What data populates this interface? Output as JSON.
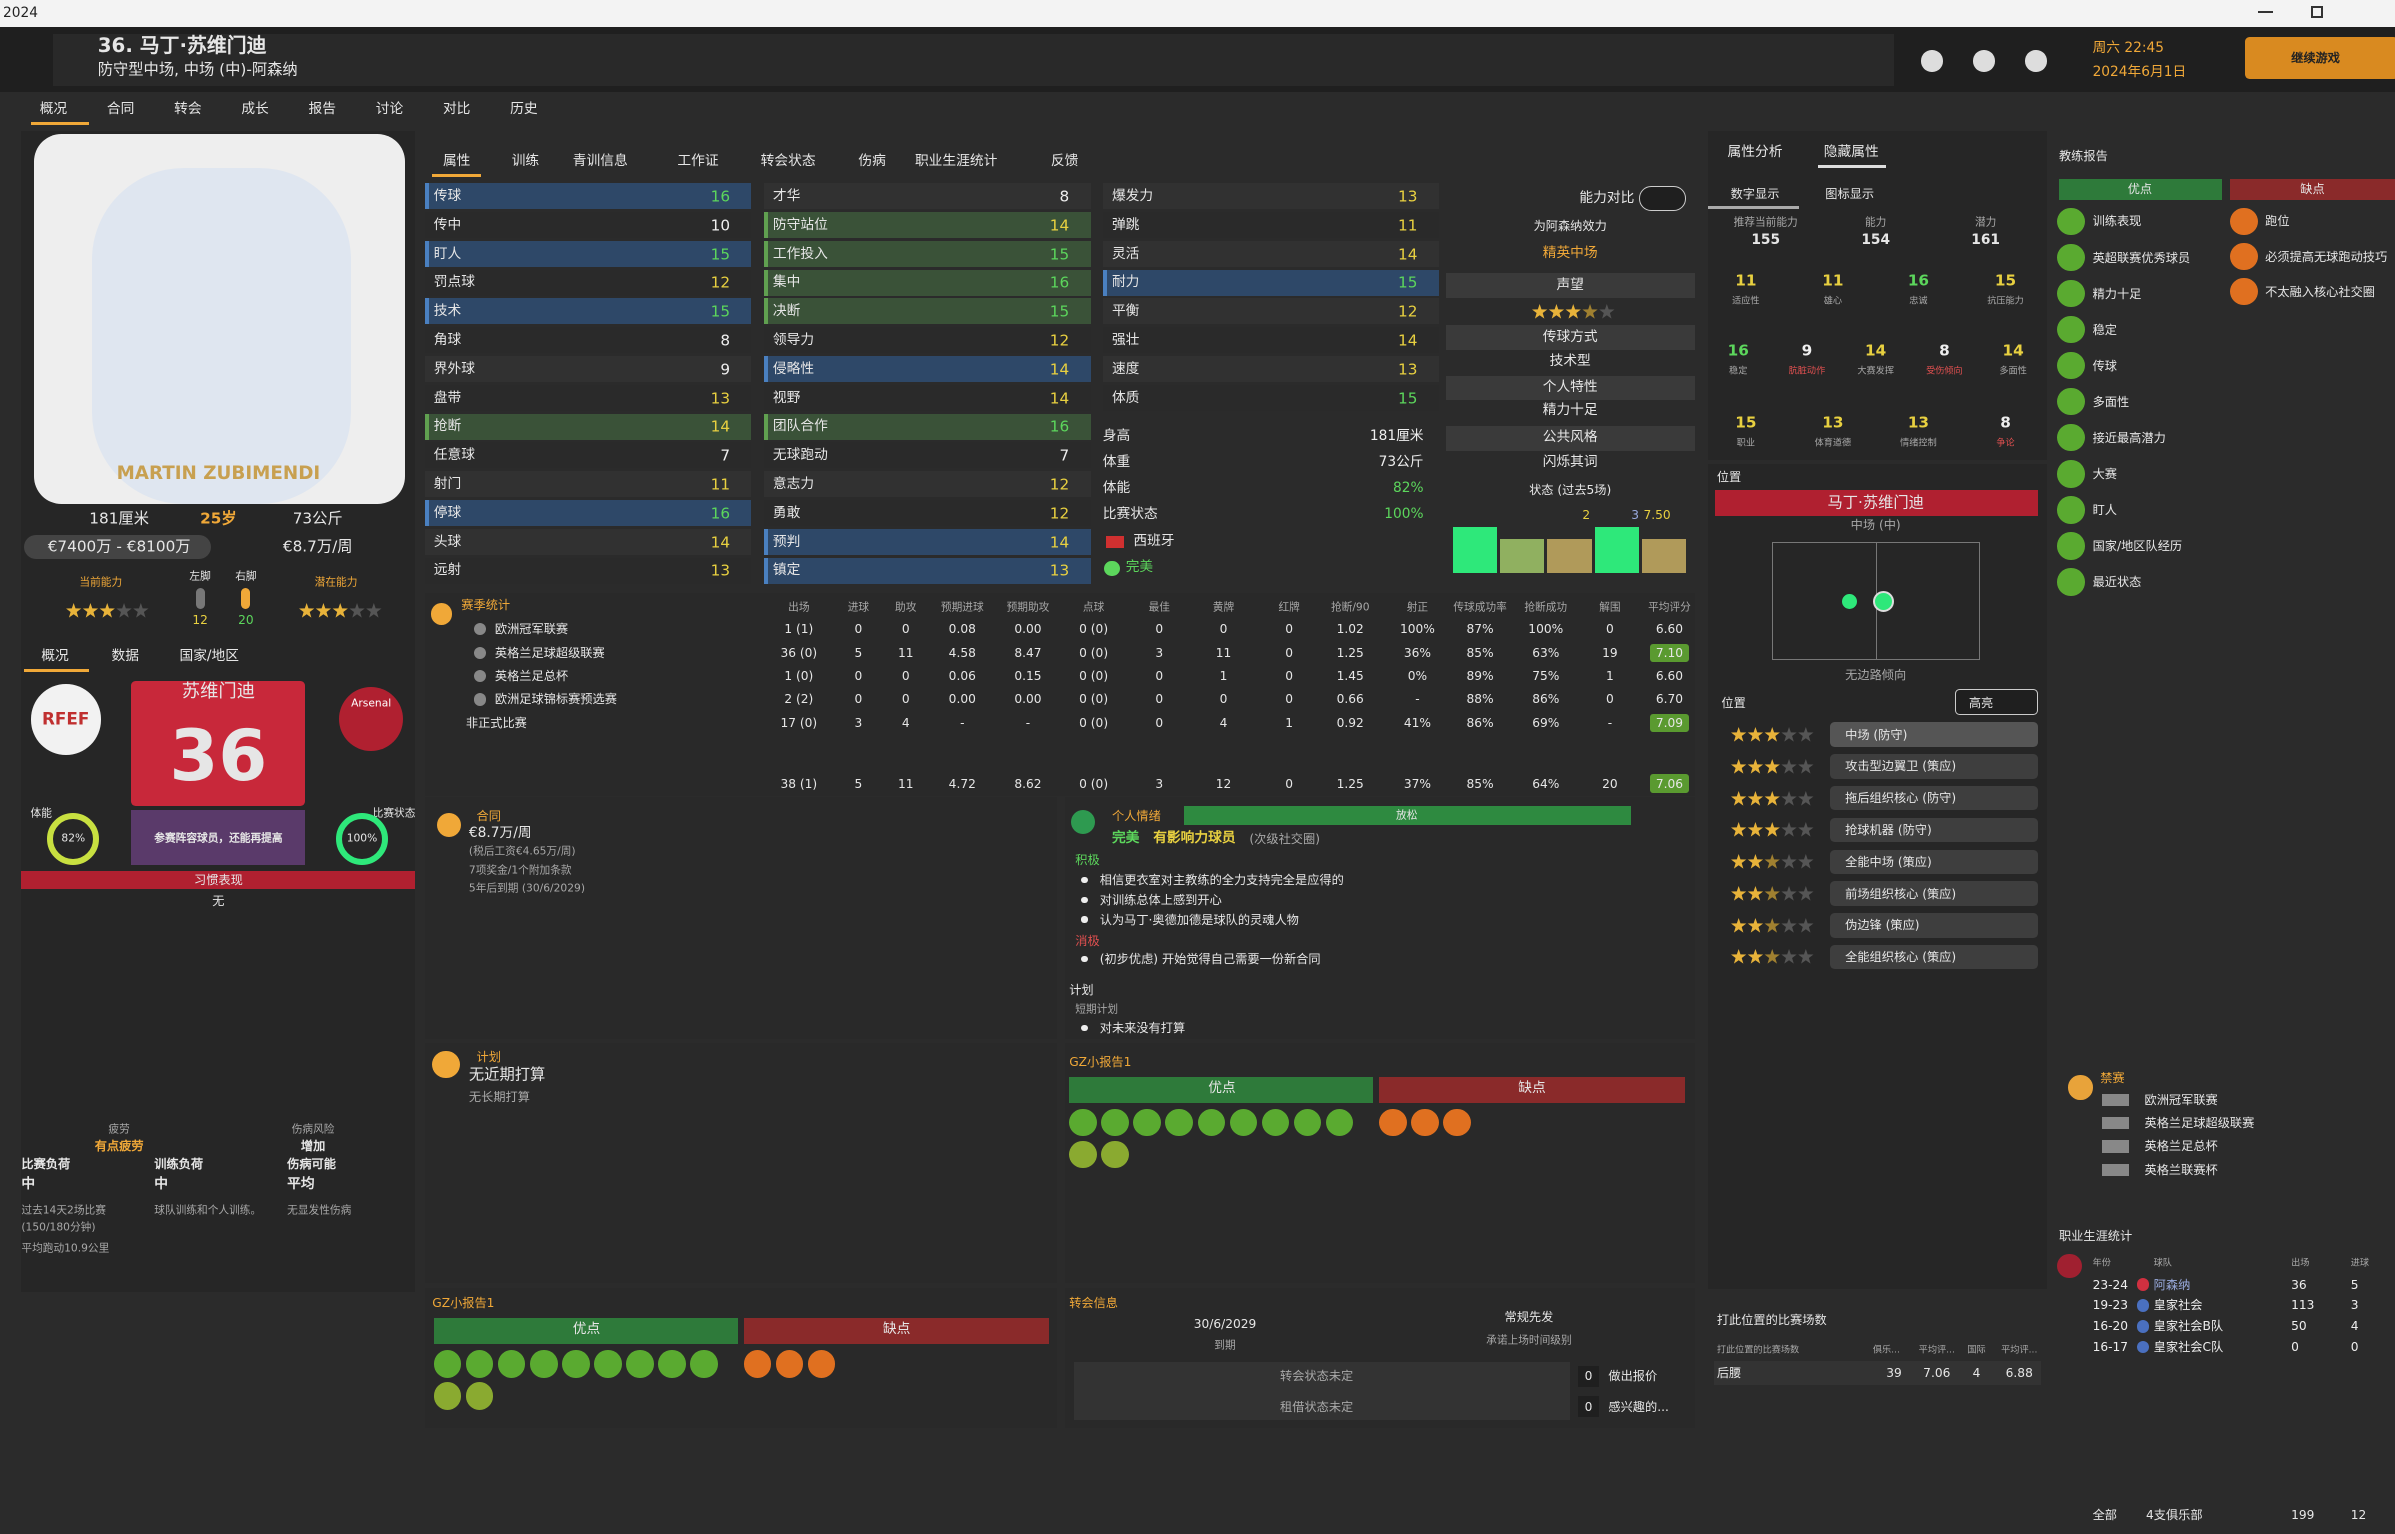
{
  "window": {
    "title": "2024"
  },
  "header": {
    "name": "36. 马丁·苏维门迪",
    "subtitle": "防守型中场, 中场 (中)-阿森纳",
    "time": "周六 22:45",
    "date": "2024年6月1日",
    "continue": "继续游戏"
  },
  "nav": [
    "概况",
    "合同",
    "转会",
    "成长",
    "报告",
    "讨论",
    "对比",
    "历史"
  ],
  "profile": {
    "photo_caption": "MARTIN ZUBIMENDI",
    "height": "181厘米",
    "age": "25岁",
    "weight": "73公斤",
    "value": "€7400万 - €8100万",
    "wage": "€8.7万/周",
    "current_ability_label": "当前能力",
    "left_foot_label": "左脚",
    "left_foot": 12,
    "right_foot_label": "右脚",
    "right_foot": 20,
    "potential_label": "潜在能力"
  },
  "sub_tabs": [
    "概况",
    "数据",
    "国家/地区"
  ],
  "card": {
    "national_badge": "RFEF",
    "club_badge": "Arsenal",
    "name": "苏维门迪",
    "number": 36,
    "note": "参赛阵容球员，还能再提高",
    "fitness_label": "体能",
    "fitness": "82%",
    "match_label": "比赛状态",
    "match": "100%",
    "habit_title": "习惯表现",
    "habit": "无"
  },
  "fatigue": {
    "fatigue_label": "疲劳",
    "fatigue": "有点疲劳",
    "risk_label": "伤病风险",
    "risk": "增加",
    "match_load_label": "比赛负荷",
    "match_load": "中",
    "training_load_label": "训练负荷",
    "training_load": "中",
    "injury_label": "伤病可能",
    "injury": "平均",
    "matches_note": "过去14天2场比赛",
    "minutes_note": "(150/180分钟)",
    "training_note": "球队训练和个人训练。",
    "injury_note": "无显发性伤病",
    "distance_note": "平均跑动10.9公里"
  },
  "tabs": [
    "属性",
    "训练",
    "青训信息",
    "工作证",
    "转会状态",
    "伤病",
    "职业生涯统计",
    "反馈"
  ],
  "attributes": {
    "technical": [
      [
        "传球",
        16
      ],
      [
        "传中",
        10
      ],
      [
        "盯人",
        15
      ],
      [
        "罚点球",
        12
      ],
      [
        "技术",
        15
      ],
      [
        "角球",
        8
      ],
      [
        "界外球",
        9
      ],
      [
        "盘带",
        13
      ],
      [
        "抢断",
        14
      ],
      [
        "任意球",
        7
      ],
      [
        "射门",
        11
      ],
      [
        "停球",
        16
      ],
      [
        "头球",
        14
      ],
      [
        "远射",
        13
      ]
    ],
    "mental": [
      [
        "才华",
        8
      ],
      [
        "防守站位",
        14
      ],
      [
        "工作投入",
        15
      ],
      [
        "集中",
        16
      ],
      [
        "决断",
        15
      ],
      [
        "领导力",
        12
      ],
      [
        "侵略性",
        14
      ],
      [
        "视野",
        14
      ],
      [
        "团队合作",
        16
      ],
      [
        "无球跑动",
        7
      ],
      [
        "意志力",
        12
      ],
      [
        "勇敢",
        12
      ],
      [
        "预判",
        14
      ],
      [
        "镇定",
        13
      ]
    ],
    "physical": [
      [
        "爆发力",
        13
      ],
      [
        "弹跳",
        11
      ],
      [
        "灵活",
        14
      ],
      [
        "耐力",
        15
      ],
      [
        "平衡",
        12
      ],
      [
        "强壮",
        14
      ],
      [
        "速度",
        13
      ],
      [
        "体质",
        15
      ]
    ]
  },
  "details": [
    [
      "身高",
      "181厘米"
    ],
    [
      "体重",
      "73公斤"
    ],
    [
      "体能",
      "82%"
    ],
    [
      "比赛状态",
      "100%"
    ]
  ],
  "nationality": "西班牙",
  "condition": "完美",
  "summary": {
    "compare": "能力对比",
    "playing_for": "为阿森纳效力",
    "role": "精英中场",
    "reputation": "声望",
    "pass_style_label": "传球方式",
    "pass_style": "技术型",
    "traits_label": "个人特性",
    "trait": "精力十足",
    "media_label": "公共风格",
    "media": "闪烁其词",
    "form_label": "状态 (过去5场)",
    "goals": 2,
    "assists": 3,
    "rating": "7.50"
  },
  "season_stats": {
    "title": "赛季统计",
    "columns": [
      "出场",
      "进球",
      "助攻",
      "预期进球",
      "预期助攻",
      "点球",
      "最佳",
      "黄牌",
      "红牌",
      "抢断/90",
      "射正",
      "传球成功率",
      "抢断成功",
      "解围",
      "平均评分"
    ],
    "rows": [
      {
        "competition": "欧洲冠军联赛",
        "cells": [
          "1 (1)",
          "0",
          "0",
          "0.08",
          "0.00",
          "0 (0)",
          "0",
          "0",
          "0",
          "1.02",
          "100%",
          "87%",
          "100%",
          "0",
          "6.60"
        ]
      },
      {
        "competition": "英格兰足球超级联赛",
        "cells": [
          "36 (0)",
          "5",
          "11",
          "4.58",
          "8.47",
          "0 (0)",
          "3",
          "11",
          "0",
          "1.25",
          "36%",
          "85%",
          "63%",
          "19",
          "7.10"
        ]
      },
      {
        "competition": "英格兰足总杯",
        "cells": [
          "1 (0)",
          "0",
          "0",
          "0.06",
          "0.15",
          "0 (0)",
          "0",
          "1",
          "0",
          "1.45",
          "0%",
          "89%",
          "75%",
          "1",
          "6.60"
        ]
      },
      {
        "competition": "欧洲足球锦标赛预选赛",
        "cells": [
          "2 (2)",
          "0",
          "0",
          "0.00",
          "0.00",
          "0 (0)",
          "0",
          "0",
          "0",
          "0.66",
          "-",
          "88%",
          "86%",
          "0",
          "6.70"
        ]
      },
      {
        "competition": "非正式比赛",
        "cells": [
          "17 (0)",
          "3",
          "4",
          "-",
          "-",
          "0 (0)",
          "0",
          "4",
          "1",
          "0.92",
          "41%",
          "86%",
          "69%",
          "-",
          "7.09"
        ]
      }
    ],
    "total": [
      "38 (1)",
      "5",
      "11",
      "4.72",
      "8.62",
      "0 (0)",
      "3",
      "12",
      "0",
      "1.25",
      "37%",
      "85%",
      "64%",
      "20",
      "7.06"
    ]
  },
  "contract": {
    "title": "合同",
    "wage": "€8.7万/周",
    "net": "(税后工资€4.65万/周)",
    "bonuses": "7项奖金/1个附加条款",
    "expiry": "5年后到期 (30/6/2029)"
  },
  "mood": {
    "title": "个人情绪",
    "state": "放松",
    "level": "完美",
    "status": "有影响力球员",
    "circle": "(次级社交圈)",
    "positive_label": "积极",
    "positives": [
      "相信更衣室对主教练的全力支持完全是应得的",
      "对训练总体上感到开心",
      "认为马丁·奥德加德是球队的灵魂人物"
    ],
    "negative_label": "消极",
    "negatives": [
      "(初步优虑) 开始觉得自己需要一份新合同"
    ],
    "plans_label": "计划",
    "short_plan_label": "短期计划",
    "short_plan": "对未来没有打算"
  },
  "plans": {
    "title": "计划",
    "near": "无近期打算",
    "long": "无长期打算"
  },
  "gz_report_right": {
    "title": "GZ小报告1",
    "pros": "优点",
    "cons": "缺点"
  },
  "gz_report_left": {
    "title": "GZ小报告1",
    "pros": "优点",
    "cons": "缺点"
  },
  "transfer": {
    "title": "转会信息",
    "date": "30/6/2029",
    "date_label": "到期",
    "playing_time": "常规先发",
    "playing_time_label": "承诺上场时间级别",
    "transfer_status": "转会状态未定",
    "offers": 0,
    "offers_label": "做出报价",
    "loan_status": "租借状态未定",
    "interested": 0,
    "interested_label": "感兴趣的..."
  },
  "analysis": {
    "tabs": [
      "属性分析",
      "隐藏属性"
    ],
    "modes": [
      "数字显示",
      "图标显示"
    ],
    "ability": [
      {
        "label": "推荐当前能力",
        "value": 155
      },
      {
        "label": "能力",
        "value": 154
      },
      {
        "label": "潜力",
        "value": 161
      }
    ],
    "hidden": [
      [
        {
          "value": 11,
          "label": "适应性"
        },
        {
          "value": 11,
          "label": "雄心"
        },
        {
          "value": 16,
          "label": "忠诚"
        },
        {
          "value": 15,
          "label": "抗压能力"
        }
      ],
      [
        {
          "value": 16,
          "label": "稳定"
        },
        {
          "value": 9,
          "label": "肮脏动作"
        },
        {
          "value": 14,
          "label": "大赛发挥"
        },
        {
          "value": 8,
          "label": "受伤倾向"
        },
        {
          "value": 14,
          "label": "多面性"
        }
      ],
      [
        {
          "value": 15,
          "label": "职业"
        },
        {
          "value": 13,
          "label": "体育道德"
        },
        {
          "value": 13,
          "label": "情绪控制"
        },
        {
          "value": 8,
          "label": "争论"
        }
      ]
    ]
  },
  "position": {
    "title": "位置",
    "player": "马丁·苏维门迪",
    "main": "中场 (中)",
    "wing": "无边路倾向",
    "roles_title": "位置",
    "highlight": "高亮",
    "roles": [
      "中场 (防守)",
      "攻击型边翼卫 (策应)",
      "拖后组织核心 (防守)",
      "抢球机器 (防守)",
      "全能中场 (策应)",
      "前场组织核心 (策应)",
      "伪边锋 (策应)",
      "全能组织核心 (策应)"
    ],
    "played_title": "打此位置的比赛场数",
    "played_columns": [
      "打此位置的比赛场数",
      "俱乐...",
      "平均评...",
      "国际",
      "平均评..."
    ],
    "played_row": [
      "后腰",
      39,
      "7.06",
      4,
      "6.88"
    ]
  },
  "coach_report": {
    "title": "教练报告",
    "pros_label": "优点",
    "cons_label": "缺点",
    "pros": [
      "训练表现",
      "英超联赛优秀球员",
      "精力十足",
      "稳定",
      "传球",
      "多面性",
      "接近最高潜力",
      "大赛",
      "盯人",
      "国家/地区队经历",
      "最近状态"
    ],
    "cons": [
      "跑位",
      "必须提高无球跑动技巧",
      "不太融入核心社交圈"
    ]
  },
  "suspension": {
    "title": "禁赛",
    "competitions": [
      "欧洲冠军联赛",
      "英格兰足球超级联赛",
      "英格兰足总杯",
      "英格兰联赛杯"
    ]
  },
  "career": {
    "title": "职业生涯统计",
    "columns": [
      "年份",
      "球队",
      "出场",
      "进球"
    ],
    "rows": [
      [
        "23-24",
        "阿森纳",
        36,
        5
      ],
      [
        "19-23",
        "皇家社会",
        113,
        3
      ],
      [
        "16-20",
        "皇家社会B队",
        50,
        4
      ],
      [
        "16-17",
        "皇家社会C队",
        0,
        0
      ]
    ],
    "total": [
      "全部",
      "4支俱乐部",
      199,
      12
    ]
  }
}
